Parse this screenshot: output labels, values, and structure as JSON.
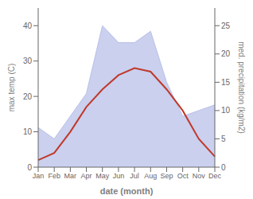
{
  "chart_data": {
    "type": "line",
    "categories": [
      "Jan",
      "Feb",
      "Mar",
      "Apr",
      "May",
      "Jun",
      "Jul",
      "Aug",
      "Sep",
      "Oct",
      "Nov",
      "Dec"
    ],
    "series": [
      {
        "type": "area",
        "axis": "y2",
        "color": "#b8c0e8",
        "values": [
          7,
          5,
          9,
          13,
          25,
          22,
          22,
          24,
          15,
          9,
          10,
          11
        ]
      },
      {
        "type": "line",
        "color": "#c0392b",
        "values": [
          2,
          4,
          10,
          17,
          22,
          26,
          28,
          27,
          22,
          16,
          8,
          3
        ]
      }
    ],
    "ylim": [
      0,
      45
    ],
    "yticks": [
      0,
      10,
      20,
      30,
      40
    ],
    "y2lim": [
      0,
      28.125
    ],
    "y2ticks": [
      0,
      5,
      10,
      15,
      20,
      25
    ],
    "grid": false,
    "xlabel": "date (month)",
    "ylabel": "max temp (C)",
    "y2label": "med. precipitation (kg/m2)"
  }
}
